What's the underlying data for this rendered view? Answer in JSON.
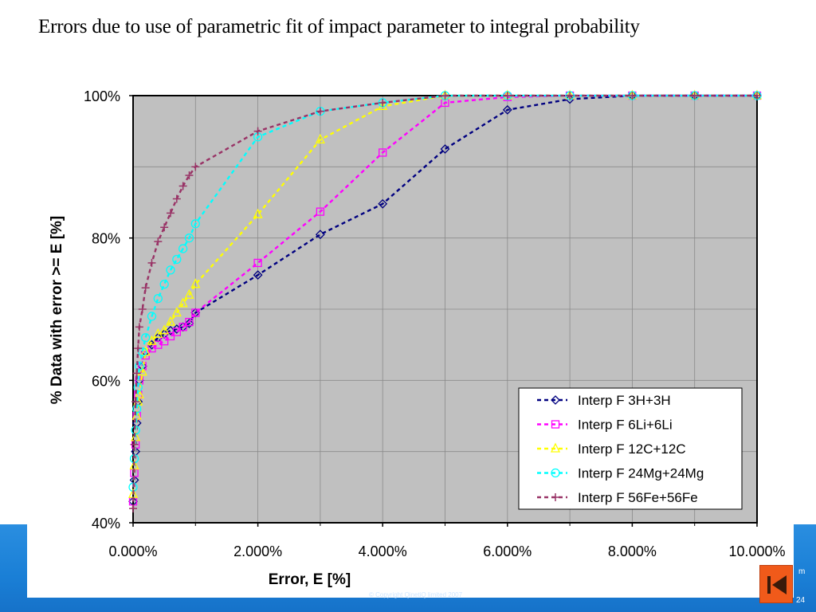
{
  "slide": {
    "title": "Errors due to use of parametric fit of impact parameter to integral probability",
    "page_number": "24",
    "copyright": "© Copyright QinetiQ limited 2007",
    "side_text": "m"
  },
  "colors": {
    "footer": "#1a7fd6",
    "plot_bg": "#c0c0c0",
    "nav_button": "#f05a1a"
  },
  "chart_data": {
    "type": "line",
    "title": "",
    "xlabel": "Error, E [%]",
    "ylabel": "% Data with error >= E [%]",
    "xlim": [
      0,
      10
    ],
    "ylim": [
      40,
      100
    ],
    "x_ticks": [
      "0.000%",
      "2.000%",
      "4.000%",
      "6.000%",
      "8.000%",
      "10.000%"
    ],
    "y_ticks": [
      "40%",
      "60%",
      "80%",
      "100%"
    ],
    "grid": true,
    "legend_position": "bottom-right",
    "series": [
      {
        "name": "Interp F 3H+3H",
        "color": "#000080",
        "marker": "diamond",
        "x": [
          0,
          0.02,
          0.04,
          0.06,
          0.08,
          0.1,
          0.15,
          0.2,
          0.3,
          0.4,
          0.5,
          0.6,
          0.7,
          0.8,
          0.9,
          1,
          2,
          3,
          4,
          5,
          6,
          7,
          8,
          9,
          10
        ],
        "y": [
          43,
          46,
          50,
          54,
          57,
          60,
          62,
          64,
          65,
          66,
          66.5,
          67,
          67.2,
          67.5,
          68,
          69.5,
          74.8,
          80.5,
          84.8,
          92.5,
          98,
          99.5,
          100,
          100,
          100
        ]
      },
      {
        "name": "Interp F 6Li+6Li",
        "color": "#ff00ff",
        "marker": "square",
        "x": [
          0,
          0.02,
          0.04,
          0.06,
          0.08,
          0.1,
          0.15,
          0.2,
          0.3,
          0.4,
          0.5,
          0.6,
          0.7,
          0.8,
          0.9,
          1,
          2,
          3,
          4,
          5,
          6,
          7,
          8,
          9,
          10
        ],
        "y": [
          43,
          47,
          51,
          55,
          58,
          60,
          62,
          63.5,
          64.5,
          65,
          65.5,
          66.2,
          66.8,
          67.5,
          68.2,
          69.5,
          76.5,
          83.7,
          92,
          99,
          99.8,
          100,
          100,
          100,
          100
        ]
      },
      {
        "name": "Interp F 12C+12C",
        "color": "#ffff00",
        "marker": "triangle",
        "x": [
          0,
          0.02,
          0.04,
          0.06,
          0.08,
          0.1,
          0.15,
          0.2,
          0.3,
          0.4,
          0.5,
          0.6,
          0.7,
          0.8,
          0.9,
          1,
          2,
          3,
          4,
          5,
          6,
          7,
          8,
          9,
          10
        ],
        "y": [
          44,
          48,
          52,
          55,
          57,
          58,
          61.2,
          64,
          65.5,
          66.5,
          67,
          68.2,
          69.5,
          70.8,
          72,
          73.5,
          83.3,
          93.8,
          98.5,
          100,
          100,
          100,
          100,
          100,
          100
        ]
      },
      {
        "name": "Interp F 24Mg+24Mg",
        "color": "#00ffff",
        "marker": "circle",
        "x": [
          0,
          0.02,
          0.04,
          0.06,
          0.08,
          0.1,
          0.15,
          0.2,
          0.3,
          0.4,
          0.5,
          0.6,
          0.7,
          0.8,
          0.9,
          1,
          2,
          3,
          4,
          5,
          6,
          7,
          8,
          9,
          10
        ],
        "y": [
          45,
          49,
          53,
          56,
          59,
          62,
          64,
          66,
          69,
          71.5,
          73.5,
          75.5,
          77,
          78.5,
          80,
          82,
          94.2,
          97.8,
          99,
          100,
          100,
          100,
          100,
          100,
          100
        ]
      },
      {
        "name": "Interp F 56Fe+56Fe",
        "color": "#993366",
        "marker": "plus",
        "x": [
          0,
          0.02,
          0.04,
          0.06,
          0.08,
          0.1,
          0.15,
          0.2,
          0.3,
          0.4,
          0.5,
          0.6,
          0.7,
          0.8,
          0.9,
          1,
          2,
          3,
          4,
          5,
          6,
          7,
          8,
          9,
          10
        ],
        "y": [
          42,
          51,
          57,
          61,
          64.5,
          67.5,
          70,
          73,
          76.5,
          79.5,
          81.5,
          83.5,
          85.5,
          87.3,
          88.8,
          90,
          95,
          97.8,
          99,
          100,
          100,
          100,
          100,
          100,
          100
        ]
      }
    ]
  }
}
